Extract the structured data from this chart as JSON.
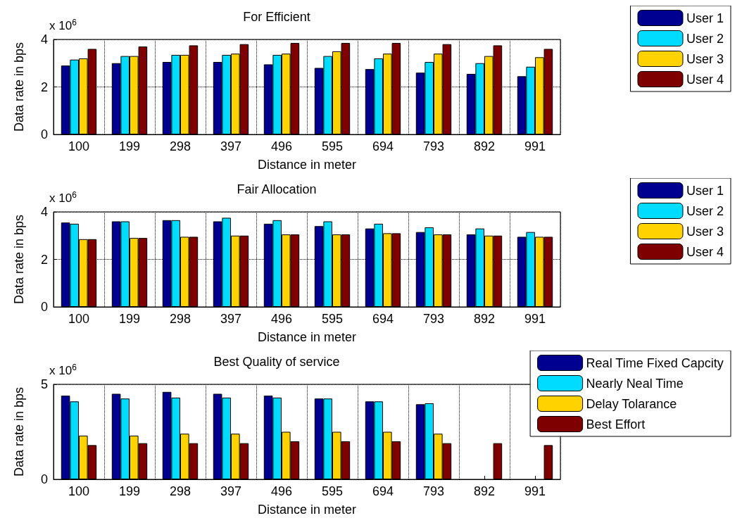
{
  "chart_data": [
    {
      "type": "bar",
      "title": "For Efficient",
      "xlabel": "Distance in meter",
      "ylabel": "Data rate in bps",
      "annotations": [
        "x 10$^{6}$"
      ],
      "categories": [
        "100",
        "199",
        "298",
        "397",
        "496",
        "595",
        "694",
        "793",
        "892",
        "991"
      ],
      "ylim": [
        0,
        4
      ],
      "yticks": [
        0,
        2,
        4
      ],
      "grid": true,
      "legend": "top right",
      "series": [
        {
          "name": "User 1",
          "color": "#000090",
          "values": [
            2.9,
            3.0,
            3.05,
            3.05,
            2.95,
            2.8,
            2.75,
            2.6,
            2.55,
            2.45
          ]
        },
        {
          "name": "User 2",
          "color": "#00dcff",
          "values": [
            3.15,
            3.3,
            3.35,
            3.35,
            3.35,
            3.3,
            3.2,
            3.05,
            3.0,
            2.85
          ]
        },
        {
          "name": "User 3",
          "color": "#ffd200",
          "values": [
            3.2,
            3.3,
            3.35,
            3.4,
            3.4,
            3.5,
            3.4,
            3.4,
            3.3,
            3.25
          ]
        },
        {
          "name": "User 4",
          "color": "#7f0000",
          "values": [
            3.6,
            3.7,
            3.75,
            3.8,
            3.85,
            3.85,
            3.85,
            3.8,
            3.75,
            3.6
          ]
        }
      ]
    },
    {
      "type": "bar",
      "title": "Fair Allocation",
      "xlabel": "Distance in meter",
      "ylabel": "Data rate in bps",
      "annotations": [
        "x 10$^{6}$"
      ],
      "categories": [
        "100",
        "199",
        "298",
        "397",
        "496",
        "595",
        "694",
        "793",
        "892",
        "991"
      ],
      "ylim": [
        0,
        4
      ],
      "yticks": [
        0,
        2,
        4
      ],
      "grid": true,
      "legend": "top right",
      "series": [
        {
          "name": "User 1",
          "color": "#000090",
          "values": [
            3.55,
            3.6,
            3.65,
            3.6,
            3.5,
            3.4,
            3.3,
            3.15,
            3.05,
            2.95
          ]
        },
        {
          "name": "User 2",
          "color": "#00dcff",
          "values": [
            3.5,
            3.6,
            3.65,
            3.75,
            3.65,
            3.6,
            3.5,
            3.35,
            3.3,
            3.15
          ]
        },
        {
          "name": "User 3",
          "color": "#ffd200",
          "values": [
            2.85,
            2.9,
            2.95,
            3.0,
            3.05,
            3.05,
            3.1,
            3.05,
            3.0,
            2.95
          ]
        },
        {
          "name": "User 4",
          "color": "#7f0000",
          "values": [
            2.85,
            2.9,
            2.95,
            3.0,
            3.05,
            3.05,
            3.1,
            3.05,
            3.0,
            2.95
          ]
        }
      ]
    },
    {
      "type": "bar",
      "title": "Best Quality of service",
      "xlabel": "Distance in meter",
      "ylabel": "Data rate in bps",
      "annotations": [
        "x 10$^{6}$"
      ],
      "categories": [
        "100",
        "199",
        "298",
        "397",
        "496",
        "595",
        "694",
        "793",
        "892",
        "991"
      ],
      "ylim": [
        0,
        5
      ],
      "yticks": [
        0,
        5
      ],
      "grid": true,
      "legend": "top right",
      "series": [
        {
          "name": "Real Time Fixed Capcity",
          "color": "#000090",
          "values": [
            4.4,
            4.5,
            4.6,
            4.5,
            4.4,
            4.25,
            4.1,
            3.95,
            null,
            null
          ]
        },
        {
          "name": "Nearly Neal Time",
          "color": "#00dcff",
          "values": [
            4.1,
            4.25,
            4.3,
            4.3,
            4.3,
            4.25,
            4.1,
            4.0,
            null,
            null
          ]
        },
        {
          "name": "Delay Tolarance",
          "color": "#ffd200",
          "values": [
            2.3,
            2.3,
            2.4,
            2.4,
            2.5,
            2.5,
            2.5,
            2.4,
            null,
            null
          ]
        },
        {
          "name": "Best Effort",
          "color": "#7f0000",
          "values": [
            1.8,
            1.9,
            1.9,
            1.9,
            2.0,
            2.0,
            2.0,
            1.9,
            1.9,
            1.8
          ]
        }
      ]
    }
  ]
}
